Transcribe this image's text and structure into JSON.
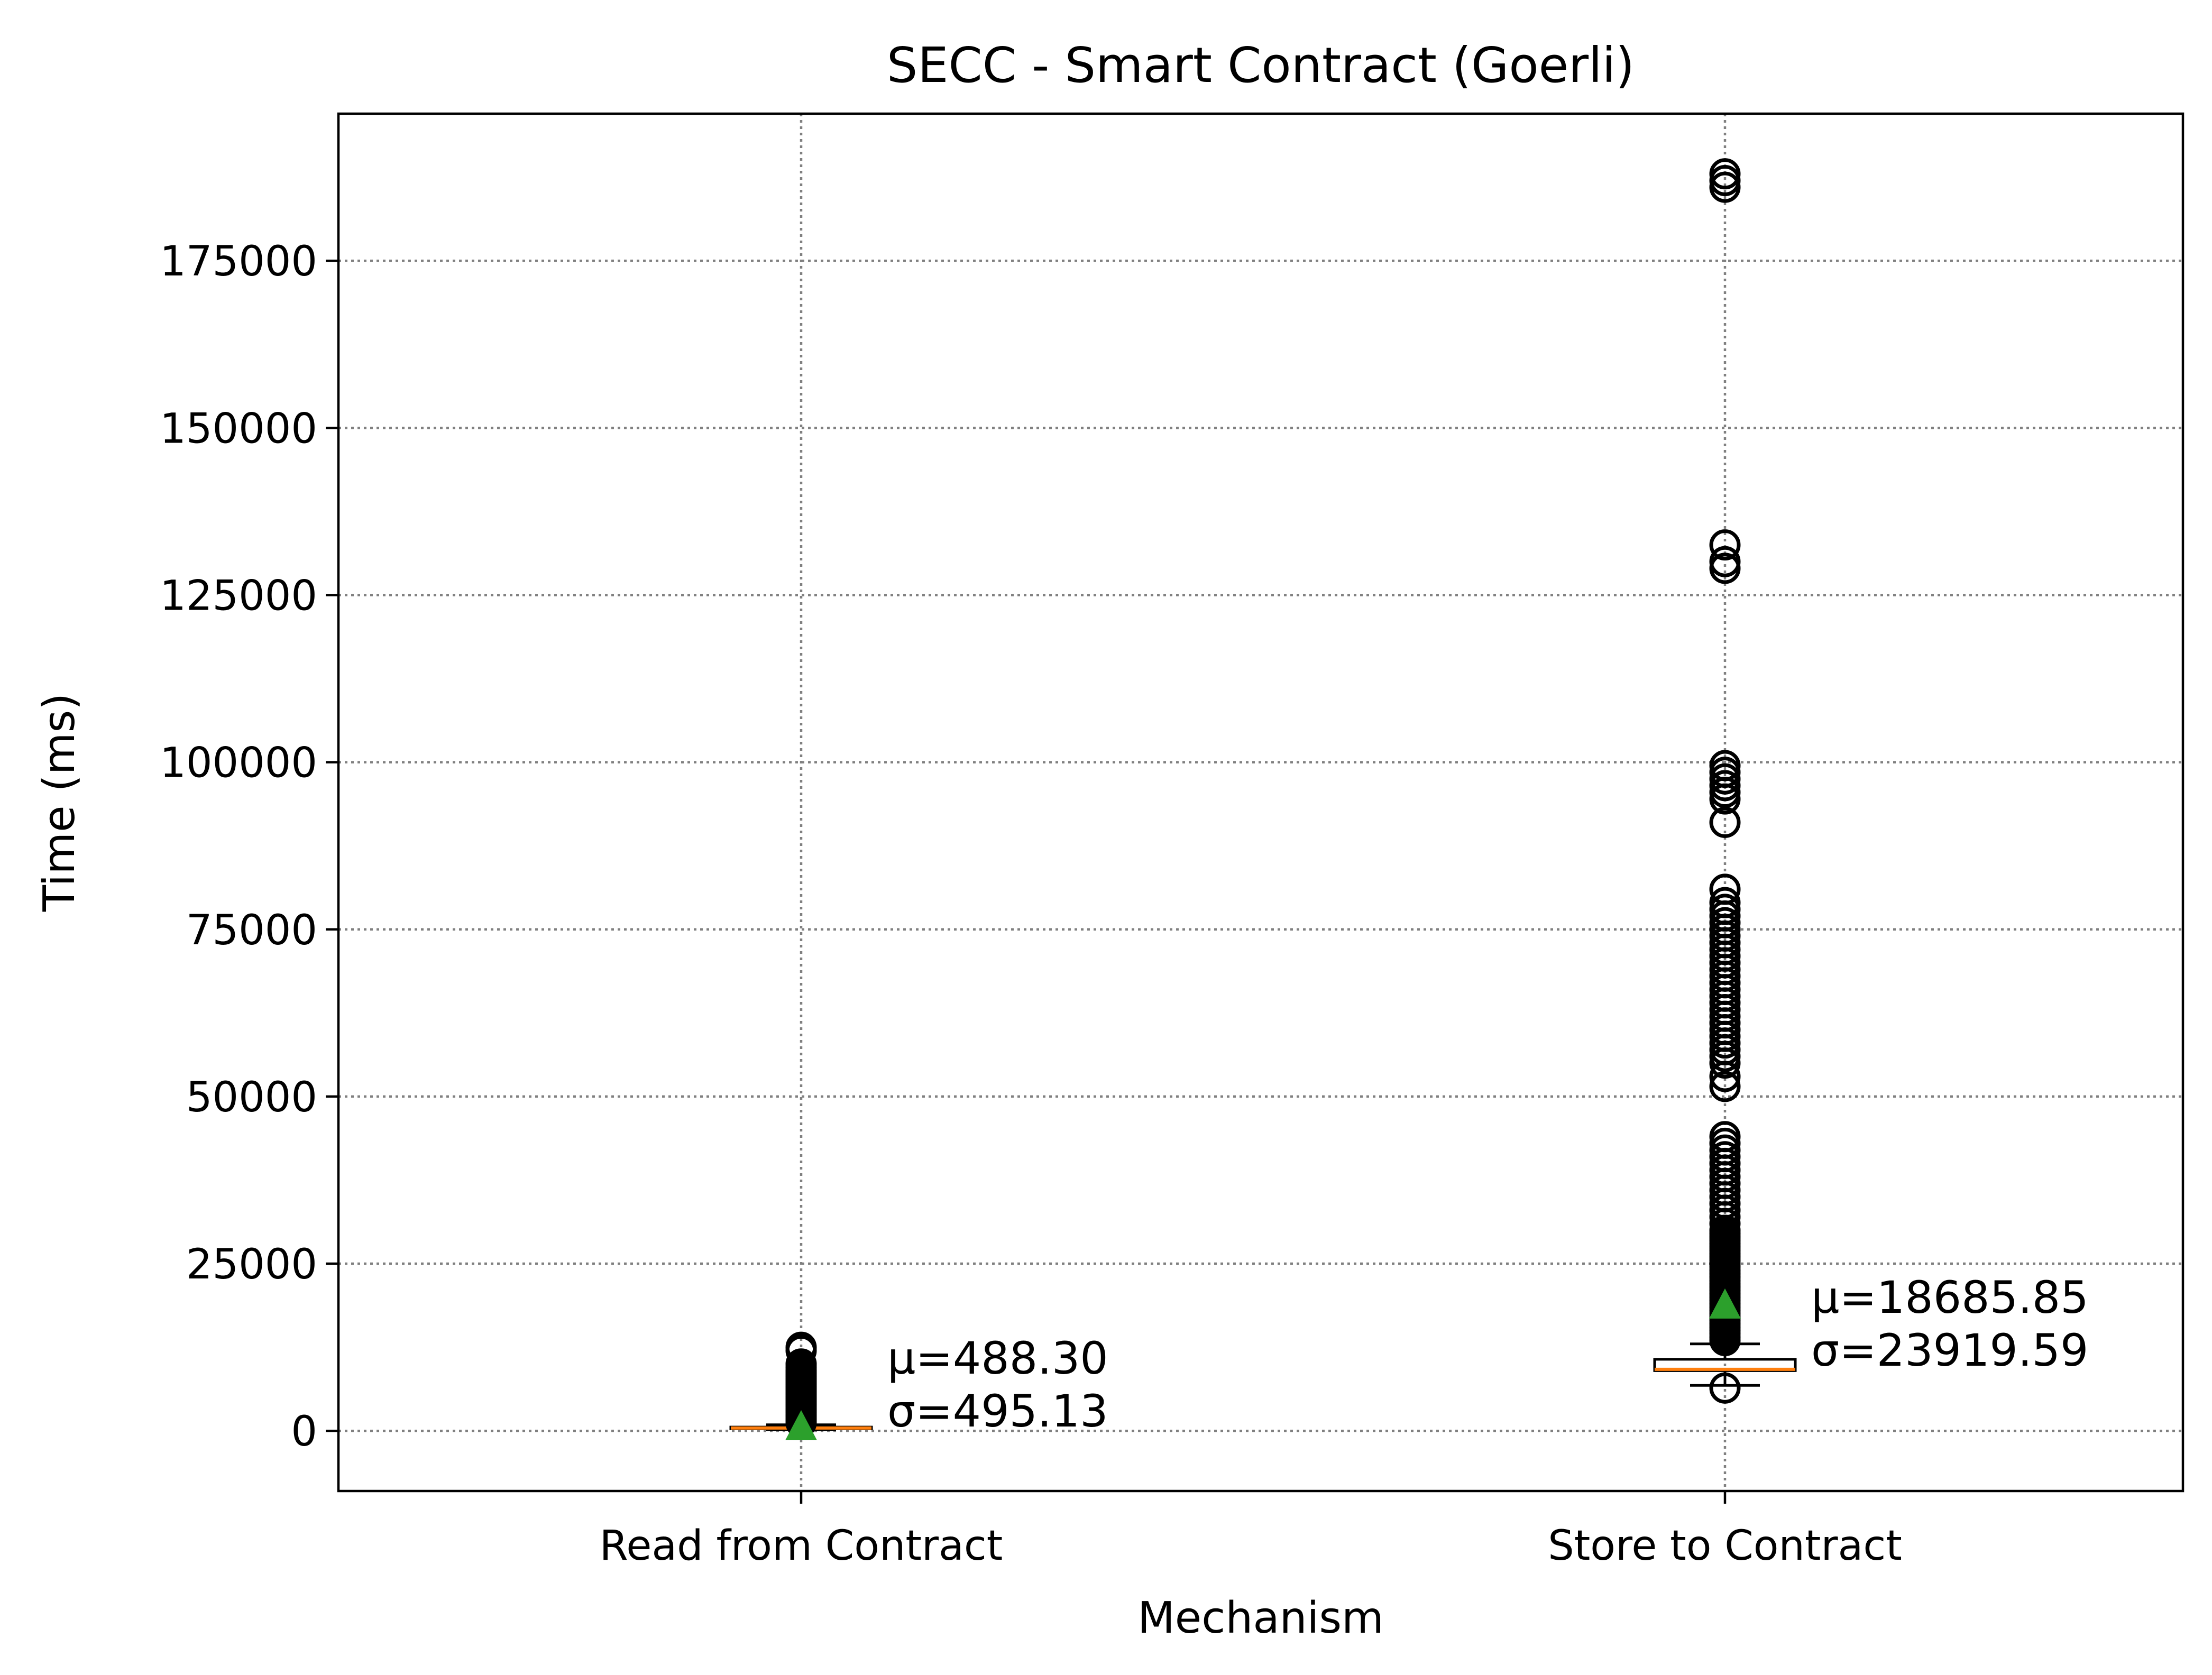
{
  "chart_data": {
    "type": "box",
    "title": "SECC - Smart Contract (Goerli)",
    "xlabel": "Mechanism",
    "ylabel": "Time (ms)",
    "ylim": [
      -9000,
      197000
    ],
    "yticks": [
      0,
      25000,
      50000,
      75000,
      100000,
      125000,
      150000,
      175000
    ],
    "grid": true,
    "categories": [
      "Read from Contract",
      "Store to Contract"
    ],
    "series": [
      {
        "category": "Read from Contract",
        "q1": 300,
        "median": 420,
        "q3": 560,
        "whisker_low": 150,
        "whisker_high": 900,
        "mean": 488.3,
        "std": 495.13,
        "mean_label": "μ=488.30",
        "std_label": "σ=495.13",
        "outliers": [
          1200,
          1500,
          1800,
          2100,
          2400,
          2700,
          3000,
          3300,
          3600,
          3900,
          4200,
          4500,
          4800,
          5100,
          5400,
          5700,
          6000,
          6300,
          6600,
          6900,
          7200,
          7500,
          7800,
          8100,
          8400,
          8700,
          9000,
          9500,
          10000,
          12000,
          12500
        ]
      },
      {
        "category": "Store to Contract",
        "q1": 9000,
        "median": 9200,
        "q3": 10700,
        "whisker_low": 6800,
        "whisker_high": 13000,
        "mean": 18685.85,
        "std": 23919.59,
        "mean_label": "μ=18685.85",
        "std_label": "σ=23919.59",
        "outliers": [
          6400,
          13500,
          14000,
          14500,
          15000,
          15500,
          16000,
          16500,
          17000,
          17500,
          18000,
          18500,
          19000,
          19500,
          20000,
          20500,
          21000,
          21500,
          22000,
          22500,
          23000,
          23500,
          24000,
          24500,
          25000,
          25500,
          26000,
          26500,
          27000,
          27500,
          28000,
          28500,
          29000,
          29500,
          30000,
          31000,
          32000,
          33000,
          34000,
          35000,
          36000,
          37000,
          38000,
          39000,
          40000,
          41000,
          42000,
          43000,
          44000,
          51500,
          53000,
          55000,
          56000,
          57000,
          58000,
          59000,
          60000,
          61000,
          62000,
          63000,
          64000,
          65000,
          66000,
          67000,
          68000,
          69000,
          70000,
          71000,
          72000,
          73000,
          74000,
          75000,
          76000,
          77000,
          78000,
          79000,
          81000,
          91000,
          94500,
          95500,
          96500,
          97500,
          98500,
          99500,
          129000,
          130000,
          132500,
          186000,
          187000,
          188000
        ]
      }
    ],
    "colors": {
      "median": "#ff7f0e",
      "mean_marker": "#2ca02c",
      "box": "#000000",
      "grid": "#808080"
    }
  }
}
